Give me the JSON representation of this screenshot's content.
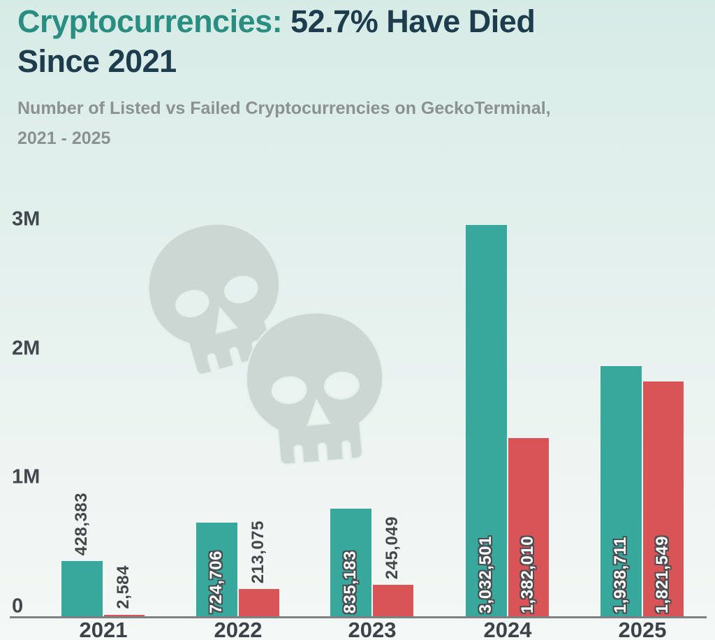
{
  "title": {
    "line1_highlight": "Cryptocurrencies:",
    "line1_rest": " 52.7% Have Died",
    "line2": "Since 2021"
  },
  "subtitle_lines": [
    "Number of Listed vs Failed Cryptocurrencies on GeckoTerminal,",
    "2021 - 2025"
  ],
  "colors": {
    "title_highlight": "#2a8d81",
    "title_dark": "#1d3c4e",
    "subtitle_gray": "#8b9093",
    "listed_teal": "#38a89d",
    "failed_red": "#d95457",
    "axis_text": "#41474b",
    "axis_line": "#7d8183",
    "value_label_dark": "#43474a",
    "value_label_outline": "#4a4e52",
    "skull_gray": "#ccd7d4",
    "background_top": "#d7ebe6",
    "background_bottom": "#f4f8f6"
  },
  "icons": [
    "skull-icon",
    "skull-icon"
  ],
  "chart_data": {
    "type": "bar",
    "title": "Cryptocurrencies: 52.7% Have Died Since 2021",
    "subtitle": "Number of Listed vs Failed Cryptocurrencies on GeckoTerminal, 2021 - 2025",
    "categories": [
      "2021",
      "2022",
      "2023",
      "2024",
      "2025"
    ],
    "series": [
      {
        "name": "Listed",
        "color": "#38a89d",
        "values": [
          428383,
          724706,
          835183,
          3032501,
          1938711
        ],
        "labels": [
          "428,383",
          "724,706",
          "835,183",
          "3,032,501",
          "1,938,711"
        ]
      },
      {
        "name": "Failed",
        "color": "#d95457",
        "values": [
          2584,
          213075,
          245049,
          1382010,
          1821549
        ],
        "labels": [
          "2,584",
          "213,075",
          "245,049",
          "1,382,010",
          "1,821,549"
        ]
      }
    ],
    "xlabel": "",
    "ylabel": "",
    "y_ticks": [
      "0",
      "1M",
      "2M",
      "3M"
    ],
    "y_tick_values": [
      0,
      1000000,
      2000000,
      3000000
    ],
    "ylim": [
      0,
      3200000
    ],
    "grid": false,
    "legend_position": "none"
  }
}
